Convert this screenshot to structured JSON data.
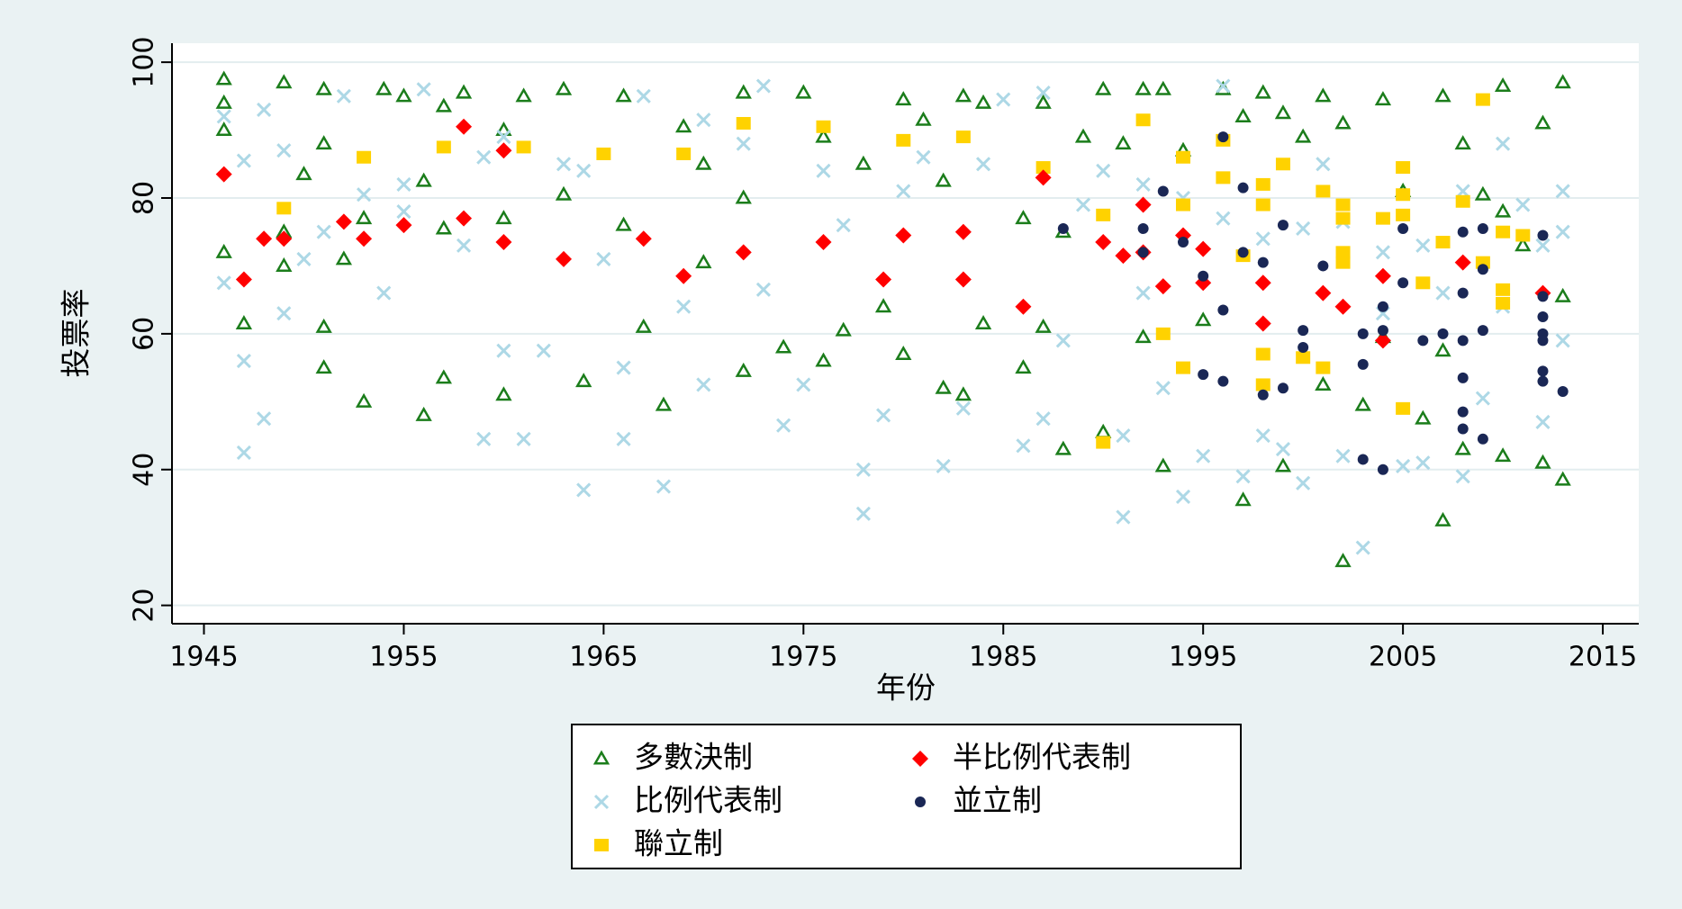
{
  "chart_data": {
    "type": "scatter",
    "xlabel": "年份",
    "ylabel": "投票率",
    "xlim": [
      1943.4,
      2016.8
    ],
    "xticks": [
      1945,
      1955,
      1965,
      1975,
      1985,
      1995,
      2005,
      2015
    ],
    "ylim": [
      17.3,
      102.8
    ],
    "yticks": [
      20,
      40,
      60,
      80,
      100
    ],
    "grid": true,
    "legend": "bottom",
    "series": [
      {
        "name": "多數決制",
        "color": "#1b7d1b",
        "marker": "triangle",
        "x": [
          1946,
          1946,
          1946,
          1946,
          1947,
          1949,
          1949,
          1949,
          1950,
          1951,
          1951,
          1951,
          1951,
          1952,
          1953,
          1953,
          1954,
          1955,
          1956,
          1956,
          1957,
          1957,
          1957,
          1958,
          1960,
          1960,
          1960,
          1961,
          1963,
          1963,
          1964,
          1966,
          1966,
          1967,
          1968,
          1969,
          1970,
          1970,
          1972,
          1972,
          1972,
          1974,
          1975,
          1976,
          1976,
          1977,
          1978,
          1979,
          1980,
          1980,
          1981,
          1982,
          1982,
          1983,
          1983,
          1984,
          1984,
          1986,
          1986,
          1987,
          1987,
          1988,
          1988,
          1989,
          1990,
          1990,
          1991,
          1992,
          1992,
          1993,
          1993,
          1994,
          1995,
          1996,
          1997,
          1997,
          1998,
          1999,
          1999,
          2000,
          2001,
          2001,
          2002,
          2002,
          2003,
          2004,
          2004,
          2005,
          2006,
          2007,
          2007,
          2007,
          2008,
          2008,
          2009,
          2010,
          2010,
          2010,
          2011,
          2012,
          2012,
          2013,
          2013,
          2013
        ],
        "values": [
          97.5,
          94,
          90,
          72,
          61.5,
          97,
          75,
          70,
          83.5,
          96,
          88,
          61,
          55,
          71,
          77,
          50,
          96,
          95,
          82.5,
          48,
          93.5,
          75.5,
          53.5,
          95.5,
          90,
          77,
          51,
          95,
          96,
          80.5,
          53,
          95,
          76,
          61,
          49.5,
          90.5,
          85,
          70.5,
          95.5,
          80,
          54.5,
          58,
          95.5,
          89,
          56,
          60.5,
          85,
          64,
          94.5,
          57,
          91.5,
          82.5,
          52,
          95,
          51,
          94,
          61.5,
          77,
          55,
          94,
          61,
          75,
          43,
          89,
          96,
          45.5,
          88,
          96,
          59.5,
          96,
          40.5,
          87,
          62,
          96,
          92,
          35.5,
          95.5,
          92.5,
          40.5,
          89,
          95,
          52.5,
          91,
          26.5,
          49.5,
          94.5,
          59.5,
          81,
          47.5,
          95,
          32.5,
          57.5,
          88,
          43,
          80.5,
          96.5,
          78,
          42,
          73,
          91,
          41,
          97,
          65.5,
          38.5
        ]
      },
      {
        "name": "比例代表制",
        "color": "#add8e6",
        "marker": "x",
        "x": [
          1946,
          1946,
          1947,
          1947,
          1947,
          1948,
          1948,
          1949,
          1949,
          1950,
          1951,
          1952,
          1953,
          1954,
          1955,
          1956,
          1958,
          1959,
          1959,
          1960,
          1961,
          1962,
          1963,
          1964,
          1965,
          1966,
          1966,
          1967,
          1968,
          1969,
          1970,
          1972,
          1973,
          1973,
          1974,
          1975,
          1977,
          1978,
          1978,
          1979,
          1980,
          1982,
          1983,
          1985,
          1986,
          1987,
          1987,
          1988,
          1990,
          1991,
          1991,
          1992,
          1993,
          1994,
          1995,
          1996,
          1997,
          1998,
          1999,
          2000,
          2001,
          2002,
          2003,
          2004,
          2005,
          2006,
          2007,
          2008,
          2009,
          2010,
          2011,
          2012,
          2013,
          2013,
          1955,
          1960,
          1964,
          1970,
          1976,
          1981,
          1984,
          1989,
          1992,
          1994,
          1996,
          1998,
          2000,
          2002,
          2004,
          2006,
          2008,
          2010,
          2012,
          2013
        ],
        "values": [
          92,
          67.5,
          85.5,
          56,
          42.5,
          93,
          47.5,
          87,
          63,
          71,
          75,
          95,
          80.5,
          66,
          82,
          96,
          73,
          86,
          44.5,
          57.5,
          44.5,
          57.5,
          85,
          37,
          71,
          55,
          44.5,
          95,
          37.5,
          64,
          52.5,
          88,
          96.5,
          66.5,
          46.5,
          52.5,
          76,
          40,
          33.5,
          48,
          81,
          40.5,
          49,
          94.5,
          43.5,
          95.5,
          47.5,
          59,
          84,
          45,
          33,
          66,
          52,
          36,
          42,
          96.5,
          39,
          45,
          43,
          38,
          85,
          42,
          28.5,
          63,
          40.5,
          41,
          66,
          39,
          50.5,
          88,
          79,
          47,
          81,
          59,
          78,
          89,
          84,
          91.5,
          84,
          86,
          85,
          79,
          82,
          80,
          77,
          74,
          75.5,
          76.5,
          72,
          73,
          81,
          64,
          73,
          75
        ]
      },
      {
        "name": "聯立制",
        "color": "#ffd200",
        "marker": "square",
        "x": [
          1949,
          1953,
          1957,
          1961,
          1965,
          1969,
          1972,
          1976,
          1980,
          1983,
          1987,
          1990,
          1990,
          1992,
          1993,
          1994,
          1994,
          1994,
          1996,
          1996,
          1997,
          1998,
          1998,
          1998,
          1998,
          1999,
          2000,
          2001,
          2001,
          2002,
          2002,
          2002,
          2002,
          2004,
          2005,
          2005,
          2005,
          2005,
          2006,
          2007,
          2008,
          2009,
          2009,
          2010,
          2010,
          2010,
          2011
        ],
        "values": [
          78.5,
          86,
          87.5,
          87.5,
          86.5,
          86.5,
          91,
          90.5,
          88.5,
          89,
          84.5,
          77.5,
          44,
          91.5,
          60,
          86,
          79,
          55,
          88.5,
          83,
          71.5,
          82,
          79,
          57,
          52.5,
          85,
          56.5,
          81,
          55,
          79,
          77,
          72,
          70.5,
          77,
          84.5,
          80.5,
          77.5,
          49,
          67.5,
          73.5,
          79.5,
          94.5,
          70.5,
          75,
          66.5,
          64.5,
          74.5
        ]
      },
      {
        "name": "半比例代表制",
        "color": "#ff0000",
        "marker": "diamond",
        "x": [
          1946,
          1947,
          1948,
          1949,
          1952,
          1953,
          1955,
          1958,
          1958,
          1960,
          1960,
          1963,
          1967,
          1969,
          1972,
          1976,
          1979,
          1980,
          1983,
          1983,
          1986,
          1987,
          1990,
          1991,
          1992,
          1992,
          1993,
          1994,
          1995,
          1995,
          1998,
          1998,
          2001,
          2002,
          2004,
          2004,
          2008,
          2012
        ],
        "values": [
          83.5,
          68,
          74,
          74,
          76.5,
          74,
          76,
          90.5,
          77,
          87,
          73.5,
          71,
          74,
          68.5,
          72,
          73.5,
          68,
          74.5,
          75,
          68,
          64,
          83,
          73.5,
          71.5,
          79,
          72,
          67,
          74.5,
          72.5,
          67.5,
          67.5,
          61.5,
          66,
          64,
          68.5,
          59,
          70.5,
          66
        ]
      },
      {
        "name": "並立制",
        "color": "#1a2755",
        "marker": "circle",
        "x": [
          1988,
          1992,
          1992,
          1993,
          1994,
          1995,
          1995,
          1996,
          1996,
          1996,
          1997,
          1997,
          1998,
          1998,
          1999,
          1999,
          2000,
          2000,
          2001,
          2003,
          2003,
          2003,
          2004,
          2004,
          2004,
          2005,
          2005,
          2006,
          2007,
          2008,
          2008,
          2008,
          2008,
          2008,
          2008,
          2009,
          2009,
          2009,
          2009,
          2012,
          2012,
          2012,
          2012,
          2012,
          2012,
          2012,
          2013
        ],
        "values": [
          75.5,
          75.5,
          72,
          81,
          73.5,
          68.5,
          54,
          89,
          63.5,
          53,
          81.5,
          72,
          70.5,
          51,
          76,
          52,
          60.5,
          58,
          70,
          60,
          55.5,
          41.5,
          64,
          60.5,
          40,
          75.5,
          67.5,
          59,
          60,
          75,
          66,
          59,
          53.5,
          48.5,
          46,
          75.5,
          69.5,
          60.5,
          44.5,
          74.5,
          65.5,
          62.5,
          60,
          59,
          54.5,
          53,
          51.5
        ]
      }
    ]
  }
}
